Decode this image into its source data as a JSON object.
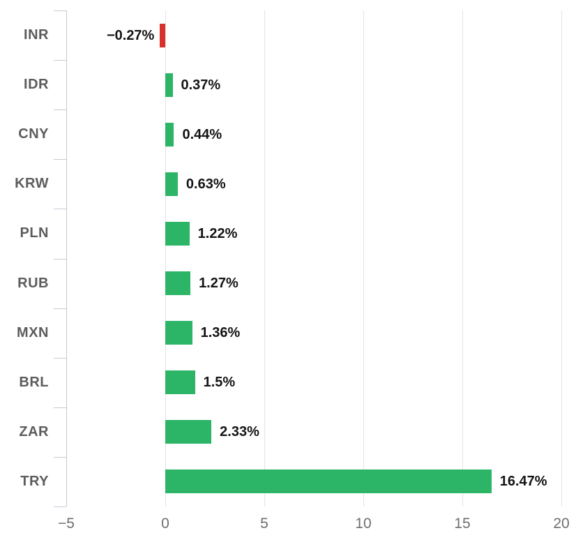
{
  "chart_data": {
    "type": "bar",
    "orientation": "horizontal",
    "title": "",
    "xlabel": "",
    "ylabel": "",
    "categories": [
      "INR",
      "IDR",
      "CNY",
      "KRW",
      "PLN",
      "RUB",
      "MXN",
      "BRL",
      "ZAR",
      "TRY"
    ],
    "values": [
      -0.27,
      0.37,
      0.44,
      0.63,
      1.22,
      1.27,
      1.36,
      1.5,
      2.33,
      16.47
    ],
    "value_labels": [
      "−0.27%",
      "0.37%",
      "0.44%",
      "0.63%",
      "1.22%",
      "1.27%",
      "1.36%",
      "1.5%",
      "2.33%",
      "16.47%"
    ],
    "xlim": [
      -5,
      20
    ],
    "x_tick_values": [
      -5,
      0,
      5,
      10,
      15,
      20
    ],
    "x_tick_labels": [
      "−5",
      "0",
      "5",
      "10",
      "15",
      "20"
    ],
    "grid": true,
    "legend": "none",
    "colors": {
      "positive_bar": "#2db567",
      "negative_bar": "#d8312b",
      "gridline": "#e4e4e4",
      "axis": "#c3cad6",
      "category_label": "#5c5c5c",
      "x_tick_label": "#6e6e6e",
      "value_label": "#141414"
    }
  }
}
